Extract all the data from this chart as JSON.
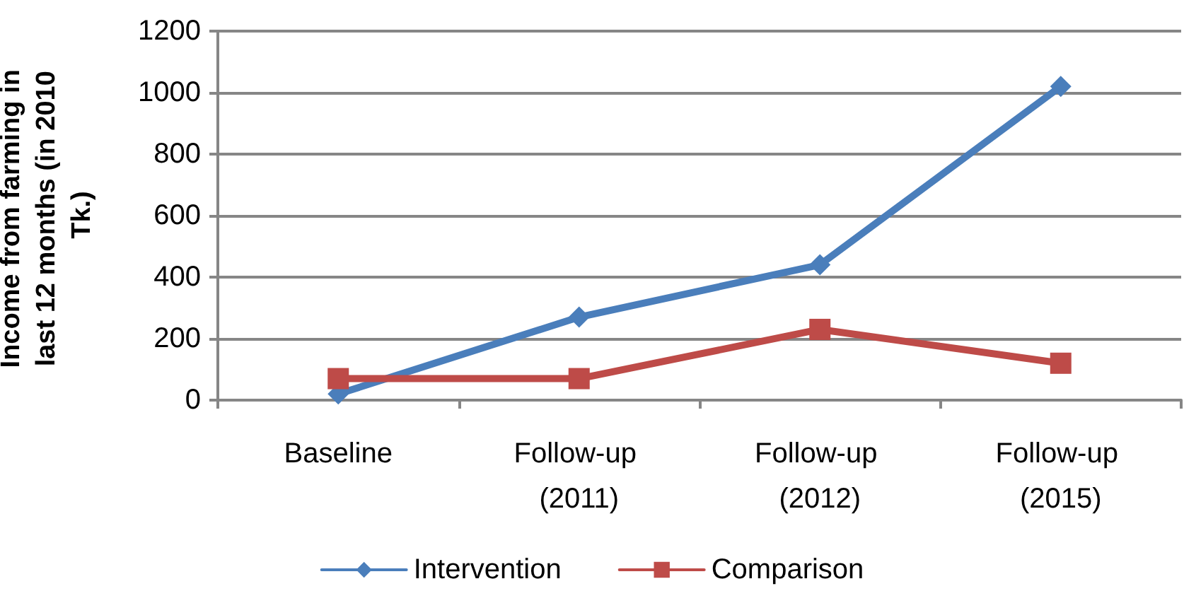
{
  "chart_data": {
    "type": "line",
    "ylabel": "Income from farming in last 12 months (in 2010 Tk.)",
    "categories": [
      "Baseline",
      "Follow-up (2011)",
      "Follow-up (2012)",
      "Follow-up (2015)"
    ],
    "series": [
      {
        "name": "Intervention",
        "color": "#4a7ebb",
        "marker": "diamond",
        "values": [
          20,
          270,
          440,
          1020
        ]
      },
      {
        "name": "Comparison",
        "color": "#be4b48",
        "marker": "square",
        "values": [
          70,
          70,
          230,
          120
        ]
      }
    ],
    "ylim": [
      0,
      1200
    ],
    "yticks": [
      0,
      200,
      400,
      600,
      800,
      1000,
      1200
    ],
    "grid": "y",
    "legend": "bottom",
    "line_style": "solid"
  }
}
